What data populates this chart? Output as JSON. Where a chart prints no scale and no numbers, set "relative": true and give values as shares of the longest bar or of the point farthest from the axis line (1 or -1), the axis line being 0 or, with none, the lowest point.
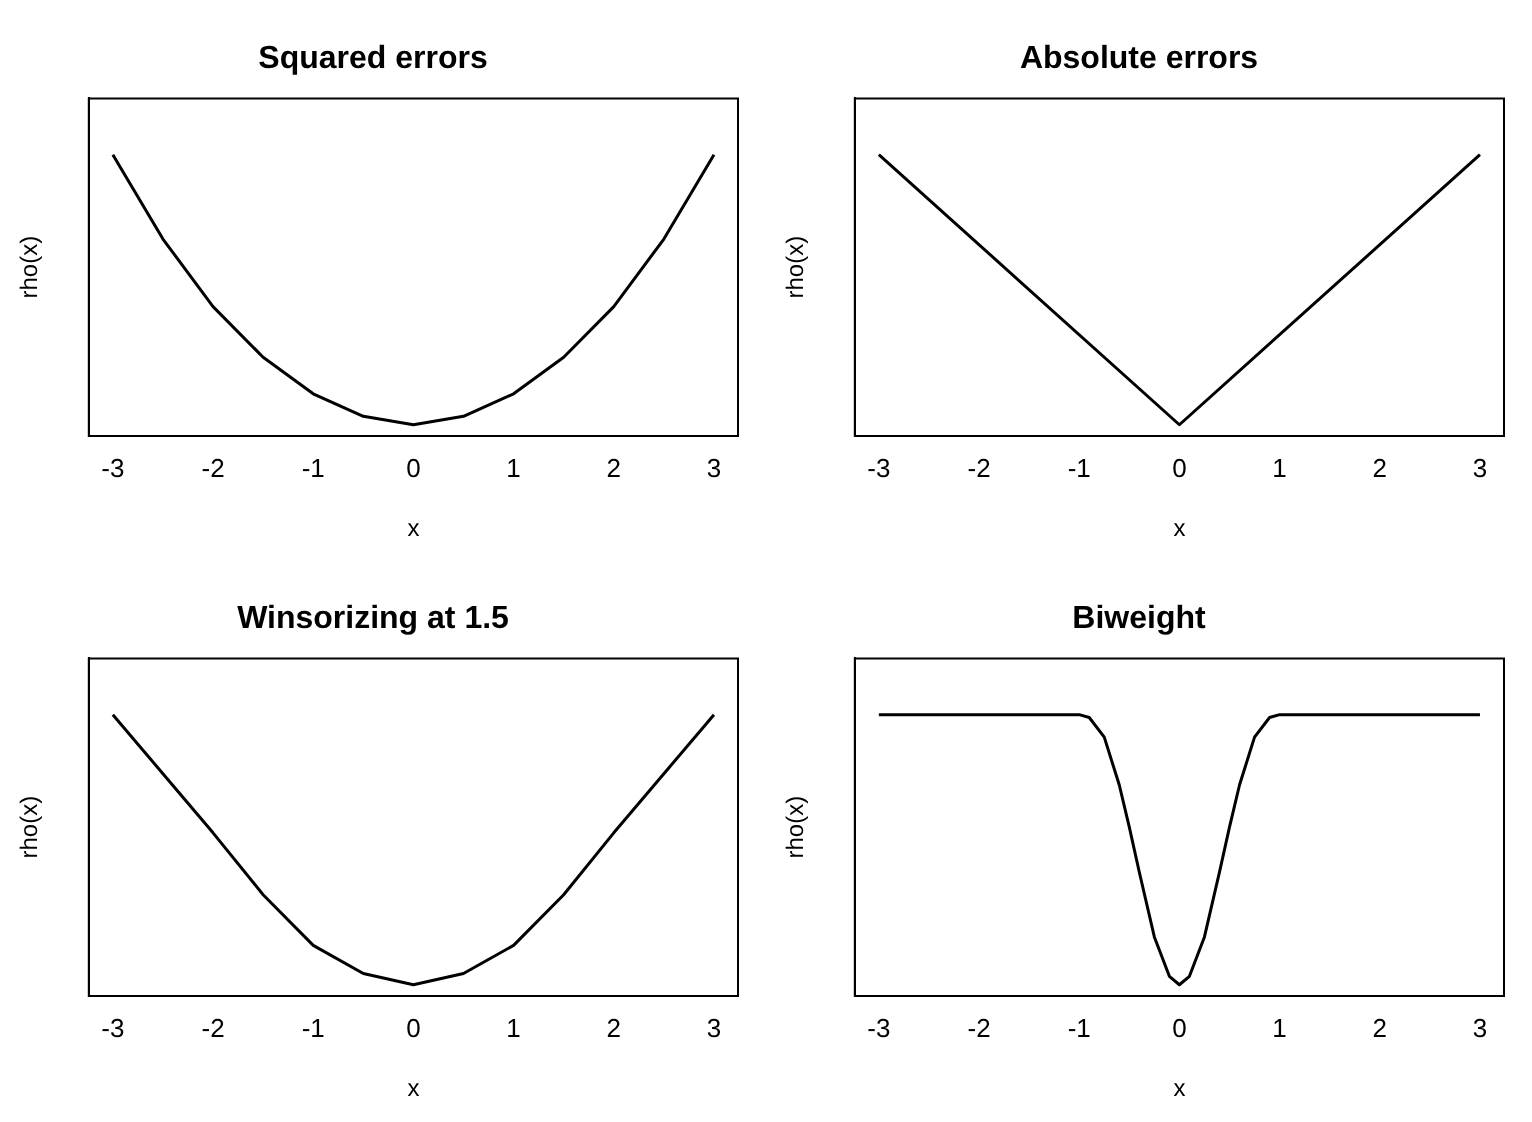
{
  "chart_data": [
    {
      "type": "line",
      "title": "Squared errors",
      "xlabel": "x",
      "ylabel": "rho(x)",
      "x": [
        -3,
        -2.5,
        -2,
        -1.5,
        -1,
        -0.5,
        0,
        0.5,
        1,
        1.5,
        2,
        2.5,
        3
      ],
      "values": [
        1,
        0.7,
        0.46,
        0.28,
        0.15,
        0.07,
        0.04,
        0.07,
        0.15,
        0.28,
        0.46,
        0.7,
        1
      ],
      "color": "#000000",
      "xlim": [
        -3.24,
        3.24
      ],
      "xticks": [
        -3,
        -2,
        -1,
        0,
        1,
        2,
        3
      ],
      "relative": true,
      "grid": false,
      "legend": false,
      "marker": "none"
    },
    {
      "type": "line",
      "title": "Absolute errors",
      "xlabel": "x",
      "ylabel": "rho(x)",
      "x": [
        -3,
        0,
        3
      ],
      "values": [
        1,
        0.04,
        1
      ],
      "color": "#000000",
      "xlim": [
        -3.24,
        3.24
      ],
      "xticks": [
        -3,
        -2,
        -1,
        0,
        1,
        2,
        3
      ],
      "relative": true,
      "grid": false,
      "legend": false,
      "marker": "none"
    },
    {
      "type": "line",
      "title": "Winsorizing at 1.5",
      "xlabel": "x",
      "ylabel": "rho(x)",
      "x": [
        -3,
        -2.5,
        -2,
        -1.5,
        -1,
        -0.5,
        0,
        0.5,
        1,
        1.5,
        2,
        2.5,
        3
      ],
      "values": [
        1,
        0.79,
        0.58,
        0.36,
        0.18,
        0.08,
        0.04,
        0.08,
        0.18,
        0.36,
        0.58,
        0.79,
        1
      ],
      "color": "#000000",
      "xlim": [
        -3.24,
        3.24
      ],
      "xticks": [
        -3,
        -2,
        -1,
        0,
        1,
        2,
        3
      ],
      "relative": true,
      "grid": false,
      "legend": false,
      "marker": "none"
    },
    {
      "type": "line",
      "title": "Biweight",
      "xlabel": "x",
      "ylabel": "rho(x)",
      "x": [
        -3,
        -1,
        -0.9,
        -0.75,
        -0.6,
        -0.5,
        -0.4,
        -0.25,
        -0.1,
        0,
        0.1,
        0.25,
        0.4,
        0.5,
        0.6,
        0.75,
        0.9,
        1,
        3
      ],
      "values": [
        1,
        1,
        0.99,
        0.92,
        0.75,
        0.6,
        0.44,
        0.21,
        0.07,
        0.04,
        0.07,
        0.21,
        0.44,
        0.6,
        0.75,
        0.92,
        0.99,
        1,
        1
      ],
      "color": "#000000",
      "xlim": [
        -3.24,
        3.24
      ],
      "xticks": [
        -3,
        -2,
        -1,
        0,
        1,
        2,
        3
      ],
      "relative": true,
      "grid": false,
      "legend": false,
      "marker": "none"
    }
  ]
}
